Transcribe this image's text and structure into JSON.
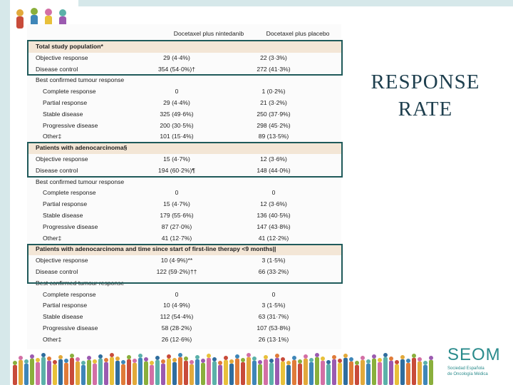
{
  "slide": {
    "title_line1": "RESPONSE",
    "title_line2": "RATE"
  },
  "colors": {
    "box_border": "#1f5a5a",
    "section_shade": "#f3e6d6",
    "title": "#1e3f4e",
    "brand": "#2a8b8c"
  },
  "table": {
    "col1_header": "Docetaxel plus nintedanib",
    "col2_header": "Docetaxel plus placebo",
    "rows": [
      {
        "kind": "section",
        "label": "Total study population*",
        "c1": "",
        "c2": ""
      },
      {
        "kind": "item",
        "label": "Objective response",
        "c1": "29 (4·4%)",
        "c2": "22 (3·3%)"
      },
      {
        "kind": "item",
        "label": "Disease control",
        "c1": "354 (54·0%)†",
        "c2": "272 (41·3%)"
      },
      {
        "kind": "item",
        "label": "Best confirmed tumour response",
        "c1": "",
        "c2": ""
      },
      {
        "kind": "indent",
        "label": "Complete response",
        "c1": "0",
        "c2": "1 (0·2%)"
      },
      {
        "kind": "indent",
        "label": "Partial response",
        "c1": "29 (4·4%)",
        "c2": "21 (3·2%)"
      },
      {
        "kind": "indent",
        "label": "Stable disease",
        "c1": "325 (49·6%)",
        "c2": "250 (37·9%)"
      },
      {
        "kind": "indent",
        "label": "Progressive disease",
        "c1": "200 (30·5%)",
        "c2": "298 (45·2%)"
      },
      {
        "kind": "indent",
        "label": "Other‡",
        "c1": "101 (15·4%)",
        "c2": "89 (13·5%)"
      },
      {
        "kind": "section",
        "label": "Patients with adenocarcinoma§",
        "c1": "",
        "c2": ""
      },
      {
        "kind": "item",
        "label": "Objective response",
        "c1": "15 (4·7%)",
        "c2": "12 (3·6%)"
      },
      {
        "kind": "item",
        "label": "Disease control",
        "c1": "194 (60·2%)¶",
        "c2": "148 (44·0%)"
      },
      {
        "kind": "item",
        "label": "Best confirmed tumour response",
        "c1": "",
        "c2": ""
      },
      {
        "kind": "indent",
        "label": "Complete response",
        "c1": "0",
        "c2": "0"
      },
      {
        "kind": "indent",
        "label": "Partial response",
        "c1": "15 (4·7%)",
        "c2": "12 (3·6%)"
      },
      {
        "kind": "indent",
        "label": "Stable disease",
        "c1": "179 (55·6%)",
        "c2": "136 (40·5%)"
      },
      {
        "kind": "indent",
        "label": "Progressive disease",
        "c1": "87 (27·0%)",
        "c2": "147 (43·8%)"
      },
      {
        "kind": "indent",
        "label": "Other‡",
        "c1": "41 (12·7%)",
        "c2": "41 (12·2%)"
      },
      {
        "kind": "section",
        "label": "Patients with adenocarcinoma and time since start of first-line therapy <9 months||",
        "c1": "",
        "c2": ""
      },
      {
        "kind": "item",
        "label": "Objective response",
        "c1": "10 (4·9%)**",
        "c2": "3 (1·5%)"
      },
      {
        "kind": "item",
        "label": "Disease control",
        "c1": "122 (59·2%)††",
        "c2": "66 (33·2%)"
      },
      {
        "kind": "item",
        "label": "Best confirmed tumour response",
        "c1": "",
        "c2": ""
      },
      {
        "kind": "indent",
        "label": "Complete response",
        "c1": "0",
        "c2": "0"
      },
      {
        "kind": "indent",
        "label": "Partial response",
        "c1": "10 (4·9%)",
        "c2": "3 (1·5%)"
      },
      {
        "kind": "indent",
        "label": "Stable disease",
        "c1": "112 (54·4%)",
        "c2": "63 (31·7%)"
      },
      {
        "kind": "indent",
        "label": "Progressive disease",
        "c1": "58 (28·2%)",
        "c2": "107 (53·8%)"
      },
      {
        "kind": "indent",
        "label": "Other‡",
        "c1": "26 (12·6%)",
        "c2": "26 (13·1%)"
      }
    ]
  },
  "brand": {
    "name": "SEOM",
    "line1": "Sociedad  Española",
    "line2": "de Oncología Médica"
  }
}
